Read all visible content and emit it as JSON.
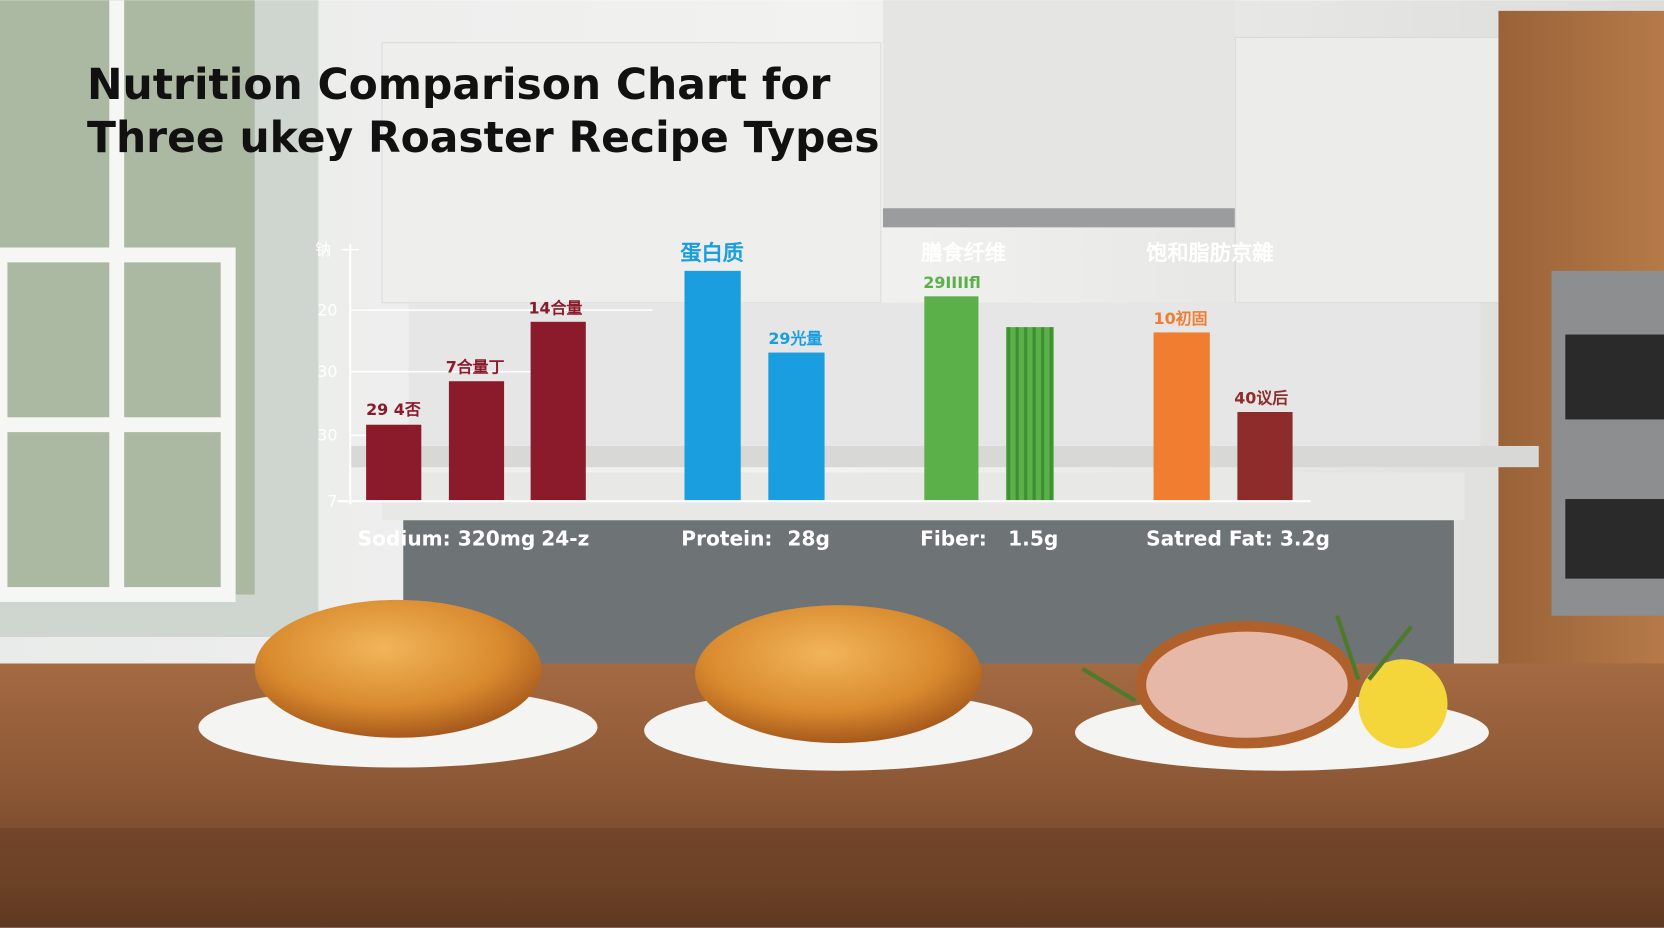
{
  "title": [
    "Nutrition Comparison Chart for",
    "Three ukey Roaster Recipe Types"
  ],
  "axis": {
    "labels": [
      "钠",
      "20",
      "30",
      "30",
      "7"
    ]
  },
  "sodium": {
    "bar_labels": [
      "29 4否",
      "7合量丁",
      "14合量"
    ],
    "footer": [
      "Sodium: 320mg",
      "24-z"
    ]
  },
  "protein": {
    "header": "蛋白质",
    "bar_labels": [
      "29光量"
    ],
    "footer": [
      "Protein:",
      "28g"
    ]
  },
  "fiber": {
    "header": "膳食纤维",
    "bar_labels": [
      "29IIIIfl"
    ],
    "footer": [
      "Fiber:",
      "1.5g"
    ]
  },
  "saturated_fat": {
    "header": "饱和脂肪京雜",
    "bar_labels": [
      "10初固",
      "40议后"
    ],
    "footer": [
      "Satred Fat: 3.2g"
    ]
  }
}
